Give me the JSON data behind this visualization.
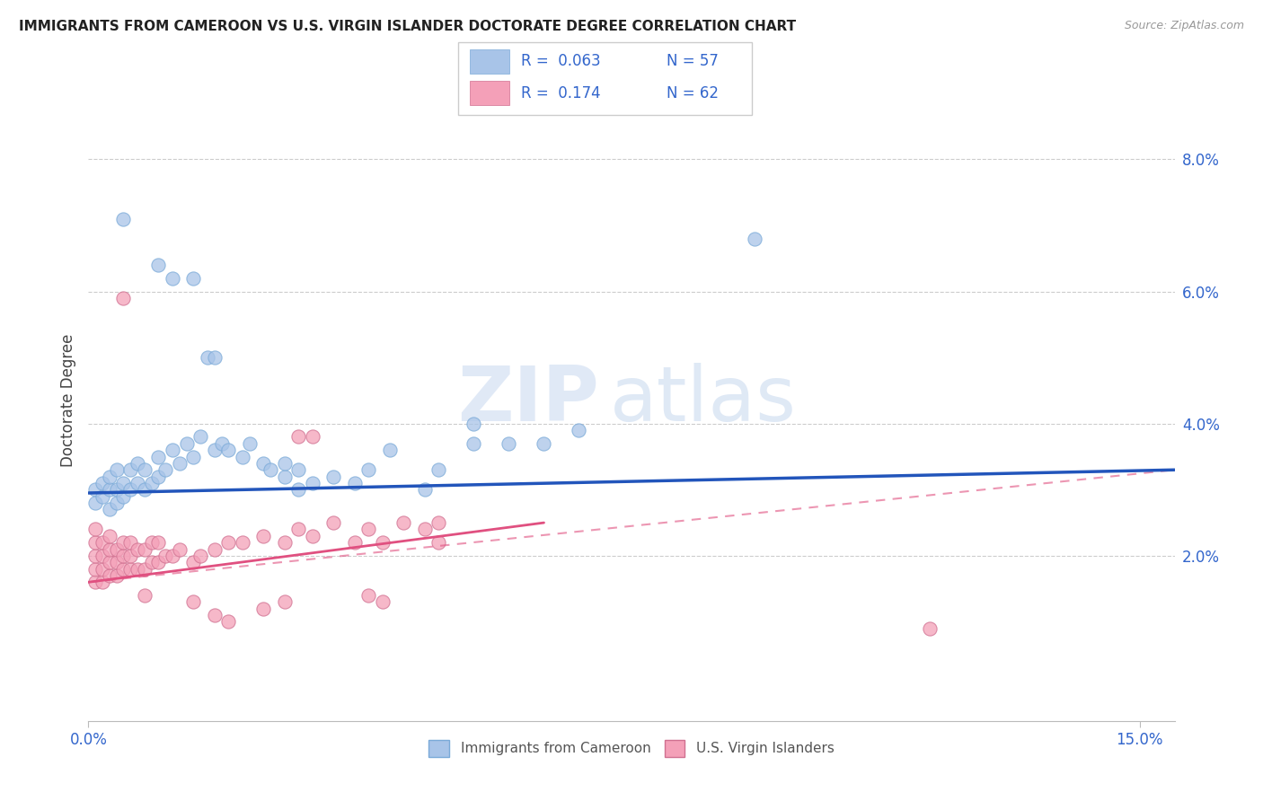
{
  "title": "IMMIGRANTS FROM CAMEROON VS U.S. VIRGIN ISLANDER DOCTORATE DEGREE CORRELATION CHART",
  "source": "Source: ZipAtlas.com",
  "ylabel": "Doctorate Degree",
  "ylabel_right_ticks": [
    "8.0%",
    "6.0%",
    "4.0%",
    "2.0%"
  ],
  "ylabel_right_vals": [
    0.08,
    0.06,
    0.04,
    0.02
  ],
  "xlim": [
    0.0,
    0.155
  ],
  "ylim": [
    -0.005,
    0.092
  ],
  "legend_r1": "R =  0.063",
  "legend_n1": "N = 57",
  "legend_r2": "R =  0.174",
  "legend_n2": "N = 62",
  "color_blue": "#a8c4e8",
  "color_blue_edge": "#7aaad8",
  "color_blue_line": "#2255bb",
  "color_pink": "#f4a0b8",
  "color_pink_edge": "#d07090",
  "color_pink_line": "#e05080",
  "watermark_zip": "ZIP",
  "watermark_atlas": "atlas",
  "blue_points": [
    [
      0.001,
      0.03
    ],
    [
      0.001,
      0.028
    ],
    [
      0.002,
      0.029
    ],
    [
      0.002,
      0.031
    ],
    [
      0.003,
      0.027
    ],
    [
      0.003,
      0.03
    ],
    [
      0.003,
      0.032
    ],
    [
      0.004,
      0.028
    ],
    [
      0.004,
      0.03
    ],
    [
      0.004,
      0.033
    ],
    [
      0.005,
      0.029
    ],
    [
      0.005,
      0.031
    ],
    [
      0.006,
      0.03
    ],
    [
      0.006,
      0.033
    ],
    [
      0.007,
      0.031
    ],
    [
      0.007,
      0.034
    ],
    [
      0.008,
      0.03
    ],
    [
      0.008,
      0.033
    ],
    [
      0.009,
      0.031
    ],
    [
      0.01,
      0.032
    ],
    [
      0.01,
      0.035
    ],
    [
      0.011,
      0.033
    ],
    [
      0.012,
      0.036
    ],
    [
      0.013,
      0.034
    ],
    [
      0.014,
      0.037
    ],
    [
      0.015,
      0.035
    ],
    [
      0.016,
      0.038
    ],
    [
      0.018,
      0.036
    ],
    [
      0.019,
      0.037
    ],
    [
      0.02,
      0.036
    ],
    [
      0.022,
      0.035
    ],
    [
      0.023,
      0.037
    ],
    [
      0.025,
      0.034
    ],
    [
      0.026,
      0.033
    ],
    [
      0.028,
      0.032
    ],
    [
      0.028,
      0.034
    ],
    [
      0.03,
      0.03
    ],
    [
      0.03,
      0.033
    ],
    [
      0.032,
      0.031
    ],
    [
      0.035,
      0.032
    ],
    [
      0.038,
      0.031
    ],
    [
      0.04,
      0.033
    ],
    [
      0.043,
      0.036
    ],
    [
      0.048,
      0.03
    ],
    [
      0.05,
      0.033
    ],
    [
      0.055,
      0.037
    ],
    [
      0.06,
      0.037
    ],
    [
      0.065,
      0.037
    ],
    [
      0.07,
      0.039
    ],
    [
      0.005,
      0.071
    ],
    [
      0.01,
      0.064
    ],
    [
      0.012,
      0.062
    ],
    [
      0.015,
      0.062
    ],
    [
      0.017,
      0.05
    ],
    [
      0.018,
      0.05
    ],
    [
      0.095,
      0.068
    ],
    [
      0.055,
      0.04
    ]
  ],
  "pink_points": [
    [
      0.001,
      0.016
    ],
    [
      0.001,
      0.018
    ],
    [
      0.001,
      0.02
    ],
    [
      0.001,
      0.022
    ],
    [
      0.001,
      0.024
    ],
    [
      0.002,
      0.016
    ],
    [
      0.002,
      0.018
    ],
    [
      0.002,
      0.02
    ],
    [
      0.002,
      0.022
    ],
    [
      0.003,
      0.017
    ],
    [
      0.003,
      0.019
    ],
    [
      0.003,
      0.021
    ],
    [
      0.003,
      0.023
    ],
    [
      0.004,
      0.017
    ],
    [
      0.004,
      0.019
    ],
    [
      0.004,
      0.021
    ],
    [
      0.005,
      0.018
    ],
    [
      0.005,
      0.02
    ],
    [
      0.005,
      0.022
    ],
    [
      0.006,
      0.018
    ],
    [
      0.006,
      0.02
    ],
    [
      0.006,
      0.022
    ],
    [
      0.007,
      0.018
    ],
    [
      0.007,
      0.021
    ],
    [
      0.008,
      0.018
    ],
    [
      0.008,
      0.021
    ],
    [
      0.009,
      0.019
    ],
    [
      0.009,
      0.022
    ],
    [
      0.01,
      0.019
    ],
    [
      0.01,
      0.022
    ],
    [
      0.011,
      0.02
    ],
    [
      0.012,
      0.02
    ],
    [
      0.013,
      0.021
    ],
    [
      0.015,
      0.019
    ],
    [
      0.016,
      0.02
    ],
    [
      0.018,
      0.021
    ],
    [
      0.02,
      0.022
    ],
    [
      0.022,
      0.022
    ],
    [
      0.025,
      0.023
    ],
    [
      0.028,
      0.022
    ],
    [
      0.03,
      0.024
    ],
    [
      0.032,
      0.023
    ],
    [
      0.035,
      0.025
    ],
    [
      0.038,
      0.022
    ],
    [
      0.04,
      0.024
    ],
    [
      0.042,
      0.022
    ],
    [
      0.045,
      0.025
    ],
    [
      0.048,
      0.024
    ],
    [
      0.05,
      0.022
    ],
    [
      0.05,
      0.025
    ],
    [
      0.03,
      0.038
    ],
    [
      0.032,
      0.038
    ],
    [
      0.005,
      0.059
    ],
    [
      0.008,
      0.014
    ],
    [
      0.015,
      0.013
    ],
    [
      0.018,
      0.011
    ],
    [
      0.02,
      0.01
    ],
    [
      0.025,
      0.012
    ],
    [
      0.028,
      0.013
    ],
    [
      0.04,
      0.014
    ],
    [
      0.042,
      0.013
    ],
    [
      0.12,
      0.009
    ]
  ],
  "blue_trendline": [
    [
      0.0,
      0.0295
    ],
    [
      0.155,
      0.033
    ]
  ],
  "pink_trendline_solid": [
    [
      0.0,
      0.016
    ],
    [
      0.065,
      0.025
    ]
  ],
  "pink_trendline_dashed": [
    [
      0.0,
      0.016
    ],
    [
      0.155,
      0.033
    ]
  ]
}
